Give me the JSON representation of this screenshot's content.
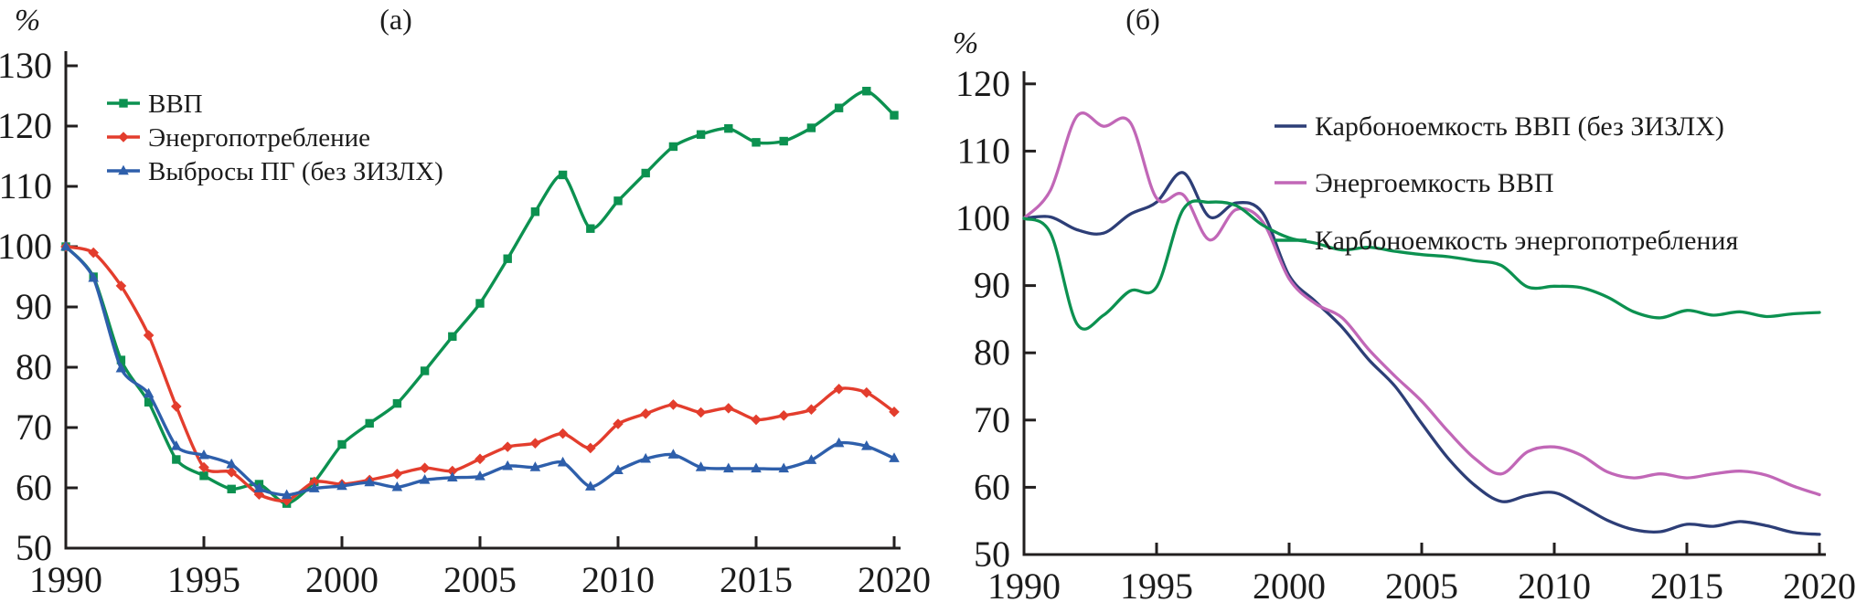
{
  "figure": {
    "background": "#ffffff",
    "axis_color": "#221f1f",
    "text_color": "#1c1c1c"
  },
  "chart_data": [
    {
      "type": "line",
      "panel_label": "(а)",
      "unit_label": "%",
      "xlabel": "",
      "ylabel": "%",
      "xlim": [
        1990,
        2020
      ],
      "ylim": [
        50,
        130
      ],
      "grid": false,
      "legend_position": "top-left-inside",
      "x_ticks": [
        1990,
        1995,
        2000,
        2005,
        2010,
        2015,
        2020
      ],
      "y_ticks": [
        50,
        60,
        70,
        80,
        90,
        100,
        110,
        120,
        130
      ],
      "x": [
        1990,
        1991,
        1992,
        1993,
        1994,
        1995,
        1996,
        1997,
        1998,
        1999,
        2000,
        2001,
        2002,
        2003,
        2004,
        2005,
        2006,
        2007,
        2008,
        2009,
        2010,
        2011,
        2012,
        2013,
        2014,
        2015,
        2016,
        2017,
        2018,
        2019,
        2020
      ],
      "series": [
        {
          "name": "ВВП",
          "color": "#0c9150",
          "marker": "square",
          "values": [
            100,
            95.0,
            81.2,
            74.2,
            64.7,
            62.0,
            59.8,
            60.6,
            57.4,
            61.0,
            67.2,
            70.7,
            74.0,
            79.4,
            85.1,
            90.6,
            98.0,
            105.8,
            111.9,
            103.0,
            107.6,
            112.2,
            116.6,
            118.6,
            119.6,
            117.3,
            117.5,
            119.7,
            123.0,
            125.8,
            121.8
          ]
        },
        {
          "name": "Энергопотребление",
          "color": "#e33d2d",
          "marker": "diamond",
          "values": [
            100,
            99.0,
            93.5,
            85.3,
            73.5,
            63.4,
            62.6,
            58.9,
            57.9,
            61.0,
            60.6,
            61.3,
            62.3,
            63.3,
            62.8,
            64.8,
            66.8,
            67.4,
            69.0,
            66.6,
            70.6,
            72.3,
            73.8,
            72.5,
            73.2,
            71.3,
            72.0,
            73.0,
            76.4,
            75.8,
            72.6
          ]
        },
        {
          "name": "Выбросы ПГ (без ЗИЗЛХ)",
          "color": "#2e5fab",
          "marker": "triangle",
          "values": [
            100,
            94.8,
            79.8,
            75.6,
            66.9,
            65.4,
            63.9,
            59.9,
            58.8,
            59.9,
            60.3,
            60.9,
            60.1,
            61.3,
            61.7,
            61.9,
            63.6,
            63.4,
            64.2,
            60.2,
            62.9,
            64.8,
            65.5,
            63.4,
            63.2,
            63.2,
            63.2,
            64.6,
            67.4,
            66.9,
            64.9
          ]
        }
      ]
    },
    {
      "type": "line",
      "panel_label": "(б)",
      "unit_label": "%",
      "xlabel": "",
      "ylabel": "%",
      "xlim": [
        1990,
        2020
      ],
      "ylim": [
        50,
        120
      ],
      "grid": false,
      "legend_position": "top-right-inside",
      "x_ticks": [
        1990,
        1995,
        2000,
        2005,
        2010,
        2015,
        2020
      ],
      "y_ticks": [
        50,
        60,
        70,
        80,
        90,
        100,
        110,
        120
      ],
      "x": [
        1990,
        1991,
        1992,
        1993,
        1994,
        1995,
        1996,
        1997,
        1998,
        1999,
        2000,
        2001,
        2002,
        2003,
        2004,
        2005,
        2006,
        2007,
        2008,
        2009,
        2010,
        2011,
        2012,
        2013,
        2014,
        2015,
        2016,
        2017,
        2018,
        2019,
        2020
      ],
      "series": [
        {
          "name": "Карбоноемкость ВВП (без ЗИЗЛХ)",
          "color": "#2d3e77",
          "marker": "none",
          "values": [
            100,
            100.2,
            98.3,
            97.8,
            100.6,
            102.4,
            106.8,
            100.2,
            102.3,
            100.8,
            91.5,
            87.6,
            83.8,
            79.0,
            75.0,
            69.5,
            64.3,
            60.3,
            57.9,
            58.8,
            59.2,
            57.3,
            55.1,
            53.7,
            53.4,
            54.5,
            54.2,
            54.9,
            54.3,
            53.3,
            53.0
          ]
        },
        {
          "name": "Энергоемкость ВВП",
          "color": "#c167b7",
          "marker": "none",
          "values": [
            100,
            104.2,
            115.2,
            113.7,
            114.3,
            103.0,
            103.5,
            96.8,
            101.3,
            99.5,
            91.0,
            87.3,
            85.2,
            80.5,
            76.5,
            72.8,
            68.3,
            64.3,
            62.0,
            65.3,
            66.0,
            64.8,
            62.3,
            61.4,
            62.0,
            61.4,
            62.0,
            62.4,
            61.8,
            60.2,
            58.9
          ]
        },
        {
          "name": "Карбоноемкость энергопотребления",
          "color": "#0c9150",
          "marker": "none",
          "values": [
            100,
            97.8,
            84.3,
            85.6,
            89.2,
            89.8,
            101.3,
            102.4,
            101.9,
            99.0,
            97.1,
            96.3,
            95.3,
            95.7,
            95.1,
            94.6,
            94.3,
            93.7,
            93.0,
            89.8,
            89.9,
            89.7,
            88.3,
            86.1,
            85.2,
            86.3,
            85.6,
            86.1,
            85.4,
            85.8,
            86.0
          ]
        }
      ]
    }
  ]
}
